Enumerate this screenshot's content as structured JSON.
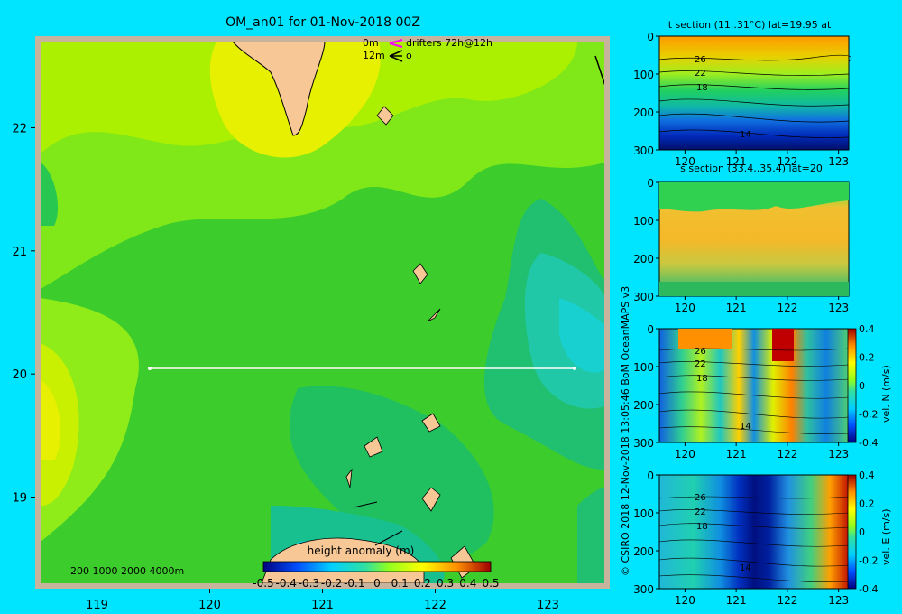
{
  "title": "OM_an01 for 01-Nov-2018 00Z",
  "credit": "© CSIRO 2018  12-Nov-2018 13:05:46 BoM OceanMAPS v3",
  "drifter_legend": {
    "line1_depth": "0m",
    "line1_text": "drifters 72h@12h",
    "line2_depth": "12m",
    "line2_text": "o"
  },
  "bathymetry_labels": "200  1000  2000  4000m",
  "colors": {
    "background": "#00e5ff",
    "frame": "#c8b49c",
    "land": "#f7c896",
    "ocean_base": "#3ccc2c"
  },
  "chart_data": [
    {
      "type": "heatmap",
      "title": "height anomaly (m)",
      "xlim": [
        118.5,
        123.5
      ],
      "ylim": [
        18.3,
        22.7
      ],
      "x_ticks": [
        "119",
        "120",
        "121",
        "122",
        "123"
      ],
      "y_ticks": [
        "19",
        "20",
        "21",
        "22"
      ],
      "section_line": {
        "lat": 20,
        "lon_start": 119.5,
        "lon_end": 123.2
      },
      "colorbar": {
        "min": -0.5,
        "max": 0.5,
        "ticks": [
          "-0.5",
          "-0.4",
          "-0.3",
          "-0.2",
          "-0.1",
          "0",
          "0.1",
          "0.2",
          "0.3",
          "0.4",
          "0.5"
        ]
      },
      "grid": false
    },
    {
      "type": "heatmap",
      "title": "t section (11..31°C) lat=19.95 at",
      "xlim": [
        119.5,
        123.2
      ],
      "ylim": [
        300,
        0
      ],
      "x_ticks": [
        "120",
        "121",
        "122",
        "123"
      ],
      "y_ticks": [
        "0",
        "100",
        "200",
        "300"
      ],
      "contour_labels": [
        "26",
        "22",
        "18",
        "14"
      ]
    },
    {
      "type": "heatmap",
      "title": "s section (33.4..35.4) lat=20",
      "xlim": [
        119.5,
        123.2
      ],
      "ylim": [
        300,
        0
      ],
      "x_ticks": [
        "120",
        "121",
        "122",
        "123"
      ],
      "y_ticks": [
        "0",
        "100",
        "200",
        "300"
      ]
    },
    {
      "type": "heatmap",
      "title": "",
      "xlim": [
        119.5,
        123.2
      ],
      "ylim": [
        300,
        0
      ],
      "x_ticks": [
        "120",
        "121",
        "122",
        "123"
      ],
      "y_ticks": [
        "0",
        "100",
        "200",
        "300"
      ],
      "contour_labels": [
        "26",
        "22",
        "18",
        "14"
      ],
      "colorbar": {
        "label": "vel. N (m/s)",
        "min": -0.4,
        "max": 0.4,
        "ticks": [
          "0.4",
          "0.2",
          "0",
          "-0.2",
          "-0.4"
        ]
      }
    },
    {
      "type": "heatmap",
      "title": "",
      "xlim": [
        119.5,
        123.2
      ],
      "ylim": [
        300,
        0
      ],
      "x_ticks": [
        "120",
        "121",
        "122",
        "123"
      ],
      "y_ticks": [
        "0",
        "100",
        "200",
        "300"
      ],
      "contour_labels": [
        "26",
        "22",
        "18",
        "14"
      ],
      "colorbar": {
        "label": "vel. E (m/s)",
        "min": -0.4,
        "max": 0.4,
        "ticks": [
          "0.4",
          "0.2",
          "0",
          "-0.2",
          "-0.4"
        ]
      }
    }
  ]
}
